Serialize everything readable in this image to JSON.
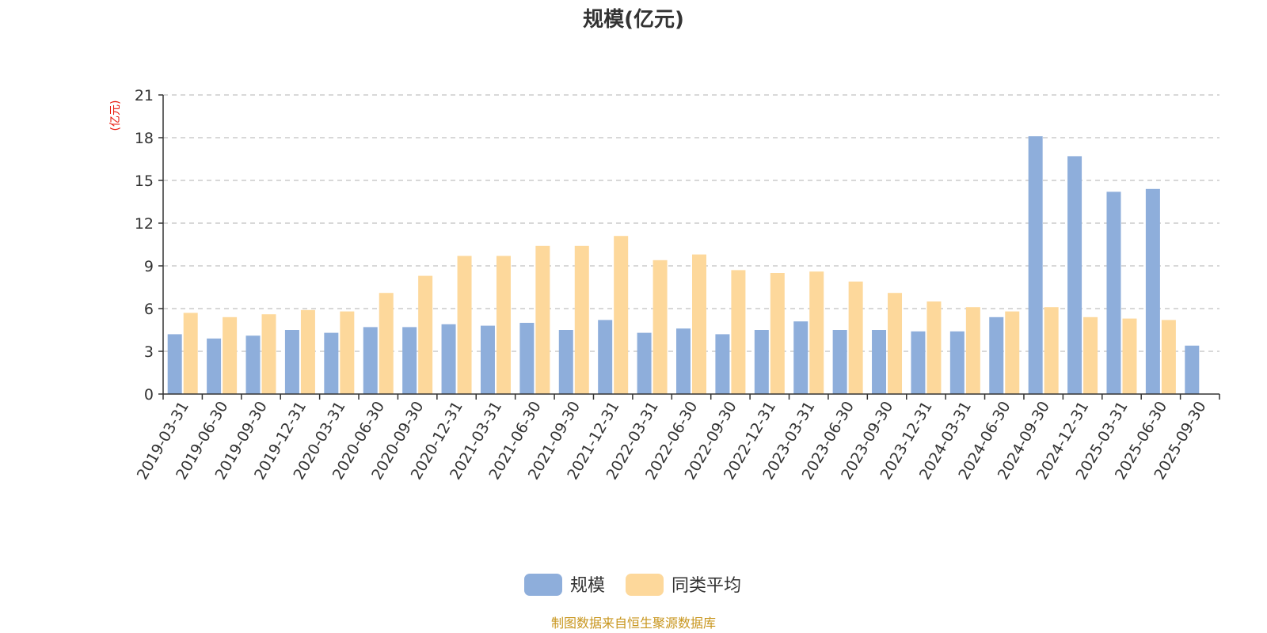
{
  "chart_data": {
    "type": "bar",
    "title": "规模(亿元)",
    "ylabel": "(亿元)",
    "xlabel": "",
    "ylim": [
      0,
      21
    ],
    "yticks": [
      "0",
      "3",
      "6",
      "9",
      "12",
      "15",
      "18",
      "21"
    ],
    "grid": true,
    "legend_position": "bottom",
    "categories": [
      "2019-03-31",
      "2019-06-30",
      "2019-09-30",
      "2019-12-31",
      "2020-03-31",
      "2020-06-30",
      "2020-09-30",
      "2020-12-31",
      "2021-03-31",
      "2021-06-30",
      "2021-09-30",
      "2021-12-31",
      "2022-03-31",
      "2022-06-30",
      "2022-09-30",
      "2022-12-31",
      "2023-03-31",
      "2023-06-30",
      "2023-09-30",
      "2023-12-31",
      "2024-03-31",
      "2024-06-30",
      "2024-09-30",
      "2024-12-31",
      "2025-03-31",
      "2025-06-30",
      "2025-09-30"
    ],
    "series": [
      {
        "name": "规模",
        "color": "#8eaedb",
        "values": [
          4.2,
          3.9,
          4.1,
          4.5,
          4.3,
          4.7,
          4.7,
          4.9,
          4.8,
          5.0,
          4.5,
          5.2,
          4.3,
          4.6,
          4.2,
          4.5,
          5.1,
          4.5,
          4.5,
          4.4,
          4.4,
          5.4,
          18.1,
          16.7,
          14.2,
          14.4,
          3.4
        ]
      },
      {
        "name": "同类平均",
        "color": "#fdd89b",
        "values": [
          5.7,
          5.4,
          5.6,
          5.9,
          5.8,
          7.1,
          8.3,
          9.7,
          9.7,
          10.4,
          10.4,
          11.1,
          9.4,
          9.8,
          8.7,
          8.5,
          8.6,
          7.9,
          7.1,
          6.5,
          6.1,
          5.8,
          6.1,
          5.4,
          5.3,
          5.2,
          null
        ]
      }
    ]
  },
  "colors": {
    "title": "#333333",
    "unit": "#e8170b",
    "source": "#c8961e",
    "grid": "#cccccc",
    "axis": "#333333"
  },
  "source_text": "制图数据来自恒生聚源数据库"
}
